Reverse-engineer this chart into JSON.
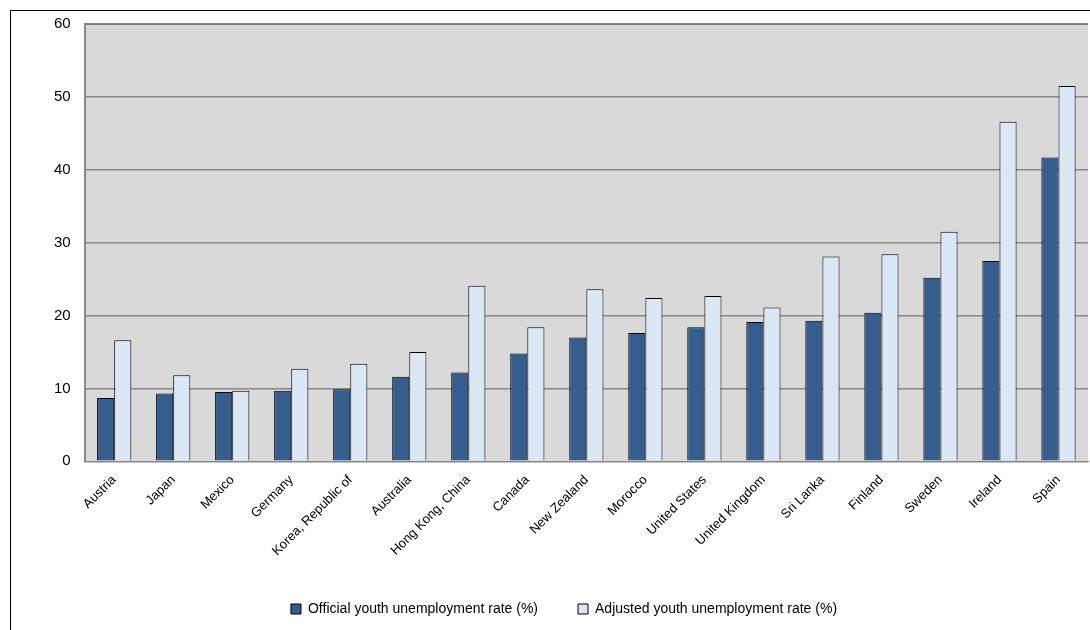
{
  "chart_data": {
    "type": "bar",
    "categories": [
      "Austria",
      "Japan",
      "Mexico",
      "Germany",
      "Korea, Republic of",
      "Australia",
      "Hong Kong, China",
      "Canada",
      "New Zealand",
      "Morocco",
      "United States",
      "United Kingdom",
      "Sri Lanka",
      "Finland",
      "Sweden",
      "Ireland",
      "Spain"
    ],
    "series": [
      {
        "name": "Official youth unemployment rate (%)",
        "color": "#355e8e",
        "values": [
          8.7,
          9.3,
          9.5,
          9.7,
          9.9,
          11.6,
          12.2,
          14.8,
          17.0,
          17.6,
          18.4,
          19.1,
          19.3,
          20.4,
          25.2,
          27.5,
          41.7
        ]
      },
      {
        "name": "Adjusted youth unemployment rate (%)",
        "color": "#dce7f6",
        "values": [
          16.6,
          11.8,
          9.7,
          12.7,
          13.4,
          15.0,
          24.1,
          18.4,
          23.6,
          22.4,
          22.7,
          21.1,
          28.1,
          28.4,
          31.5,
          46.6,
          51.5
        ]
      }
    ],
    "ylim": [
      0,
      60
    ],
    "yticks": [
      0,
      10,
      20,
      30,
      40,
      50,
      60
    ],
    "grid": "y",
    "legend": "bottom"
  }
}
